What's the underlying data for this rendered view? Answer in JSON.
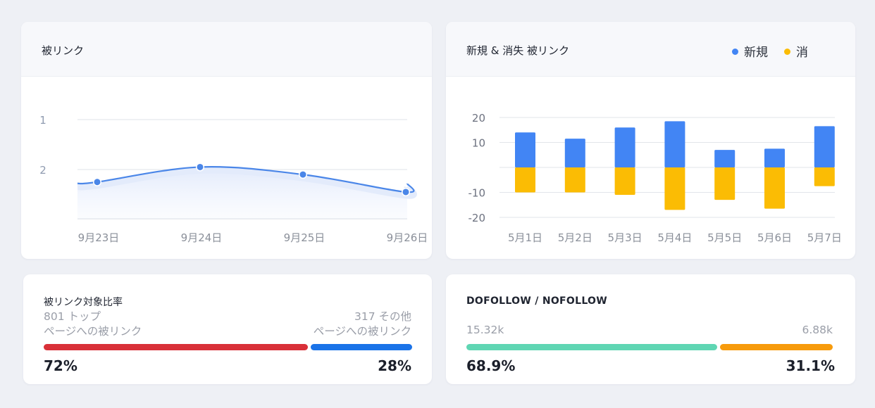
{
  "colors": {
    "line": "#4a86e8",
    "new": "#4285f4",
    "lost": "#fbbc04",
    "top_bar": "#d93038",
    "other_bar": "#1a73e8",
    "dofollow_bar": "#5fd6b3",
    "nofollow_bar": "#f79b0c"
  },
  "backlinks_card": {
    "title": "被リンク"
  },
  "new_lost_card": {
    "title": "新規 & 消失 被リンク",
    "legend_new": "新規",
    "legend_lost": "消"
  },
  "ratio_card": {
    "title": "被リンク対象比率",
    "left_line1": "801 トップ",
    "left_line2": "ページへの被リンク",
    "right_line1": "317 その他",
    "right_line2": "ページへの被リンク",
    "left_pct": "72%",
    "right_pct": "28%",
    "left_fraction": 0.72,
    "right_fraction": 0.28,
    "left_icon": "red-bar",
    "right_icon": "blue-bar"
  },
  "follow_card": {
    "title": "DOFOLLOW / NOFOLLOW",
    "left_value": "15.32k",
    "right_value": "6.88k",
    "left_pct": "68.9%",
    "right_pct": "31.1%",
    "left_fraction": 0.689,
    "right_fraction": 0.311
  },
  "chart_data": [
    {
      "type": "line",
      "title": "被リンク",
      "x": [
        "9月23日",
        "9月24日",
        "9月25日",
        "9月26日"
      ],
      "y_ticks": [
        "1",
        "2"
      ],
      "ylim": [
        1,
        2.5
      ],
      "y_reversed": true,
      "series": [
        {
          "values": [
            2.25,
            1.95,
            2.1,
            2.45
          ]
        }
      ],
      "grid": true
    },
    {
      "type": "bar",
      "title": "新規 & 消失 被リンク",
      "categories": [
        "5月1日",
        "5月2日",
        "5月3日",
        "5月4日",
        "5月5日",
        "5月6日",
        "5月7日"
      ],
      "y_ticks": [
        "20",
        "10",
        "-10",
        "-20"
      ],
      "ylim": [
        -20,
        20
      ],
      "series": [
        {
          "name": "新規",
          "values": [
            14,
            11.5,
            16,
            18.5,
            7,
            7.5,
            16.5
          ]
        },
        {
          "name": "消",
          "values": [
            -10,
            -10,
            -11,
            -17,
            -13,
            -16.5,
            -7.5
          ]
        }
      ],
      "legend": "top-right",
      "grid": true
    }
  ]
}
